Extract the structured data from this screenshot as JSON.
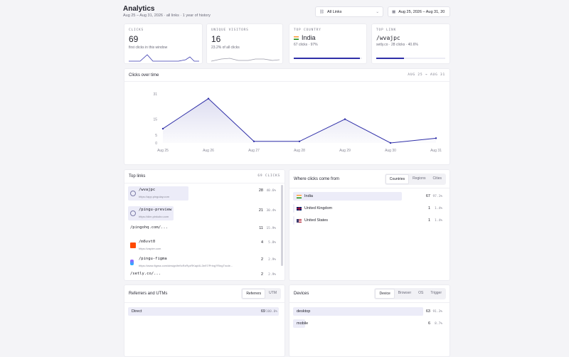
{
  "header": {
    "title": "Analytics",
    "subtitle": "Aug 25 – Aug 31, 2026 · all links · 1 year of history",
    "link_filter": "All Links",
    "date_filter": "Aug 25, 2026 – Aug 31, 20"
  },
  "stats": {
    "clicks": {
      "label": "CLICKS",
      "value": "69",
      "sub": "first clicks in this window"
    },
    "visitors": {
      "label": "UNIQUE VISITORS",
      "value": "16",
      "sub": "23.2% of all clicks"
    },
    "country": {
      "label": "TOP COUNTRY",
      "value": "India",
      "sub": "67 clicks · 97%",
      "progress": 0.97
    },
    "link": {
      "label": "TOP LINK",
      "value": "/wvajpc",
      "sub": "setly.co · 28 clicks · 40.6%",
      "progress": 0.406
    }
  },
  "clicks_over_time": {
    "title": "Clicks over time",
    "range": "AUG 25 → AUG 31"
  },
  "chart_data": {
    "type": "area",
    "categories": [
      "Aug 25",
      "Aug 26",
      "Aug 27",
      "Aug 28",
      "Aug 29",
      "Aug 30",
      "Aug 31"
    ],
    "values": [
      9,
      28,
      1,
      1,
      15,
      0,
      3
    ],
    "y_ticks": [
      "0",
      "5",
      "15",
      "31"
    ],
    "y_tick_values": [
      0,
      5,
      15,
      31
    ],
    "ylim": [
      0,
      31
    ],
    "color": "#2f2fa8"
  },
  "top_links": {
    "title": "Top links",
    "total": "69 CLICKS",
    "items": [
      {
        "name": "/wvajpc",
        "url": "https://app.pingulay.com",
        "count": "28",
        "pct": "40.6%",
        "share": 0.406,
        "icon": "globe-icon"
      },
      {
        "name": "/pingu-preview",
        "url": "https://dim.pinkubo.com",
        "count": "21",
        "pct": "30.4%",
        "share": 0.304,
        "icon": "globe-icon"
      },
      {
        "name": "/pingohq.com/...",
        "url": "",
        "count": "11",
        "pct": "15.9%",
        "share": 0.159,
        "icon": ""
      },
      {
        "name": "/m6vvt0",
        "url": "https://zapier.com",
        "count": "4",
        "pct": "5.8%",
        "share": 0.058,
        "icon": "zapier-icon"
      },
      {
        "name": "/pingu-figma",
        "url": "https://www.figma.com/design/fefIcRzRyxRKapl4L3n97/Pring?RingTrode...",
        "count": "2",
        "pct": "2.9%",
        "share": 0.029,
        "icon": "figma-icon"
      },
      {
        "name": "/setly.co/...",
        "url": "",
        "count": "2",
        "pct": "2.9%",
        "share": 0.029,
        "icon": ""
      }
    ]
  },
  "where": {
    "title": "Where clicks come from",
    "tabs": [
      "Countries",
      "Regions",
      "Cities"
    ],
    "items": [
      {
        "name": "India",
        "count": "67",
        "pct": "97.1%",
        "share": 0.971,
        "flag": "india-flag-icon"
      },
      {
        "name": "United Kingdom",
        "count": "1",
        "pct": "1.4%",
        "share": 0.014,
        "flag": "uk-flag-icon"
      },
      {
        "name": "United States",
        "count": "1",
        "pct": "1.4%",
        "share": 0.014,
        "flag": "us-flag-icon"
      }
    ]
  },
  "referrers": {
    "title": "Referrers and UTMs",
    "tabs": [
      "Referrers",
      "UTM"
    ],
    "items": [
      {
        "name": "Direct",
        "count": "69",
        "pct": "100.0%",
        "share": 1.0
      }
    ]
  },
  "devices": {
    "title": "Devices",
    "tabs": [
      "Device",
      "Browser",
      "OS",
      "Trigger"
    ],
    "items": [
      {
        "name": "desktop",
        "count": "63",
        "pct": "91.3%",
        "share": 0.913
      },
      {
        "name": "mobile",
        "count": "6",
        "pct": "8.7%",
        "share": 0.087
      }
    ]
  }
}
